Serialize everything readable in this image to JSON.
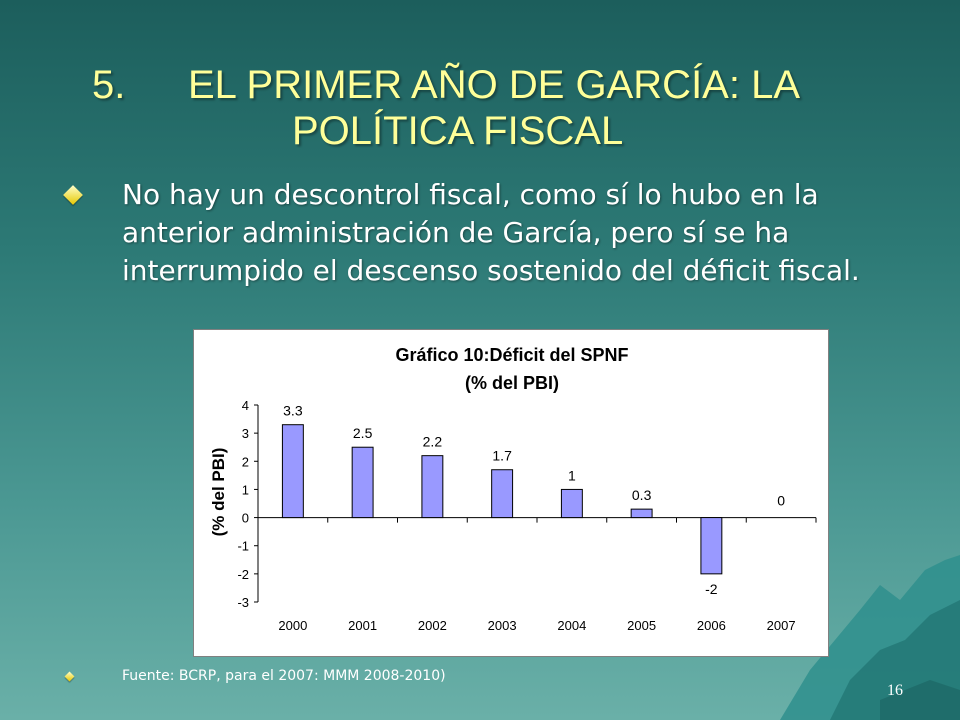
{
  "slide": {
    "title_number": "5.",
    "title_line1": "EL PRIMER AÑO DE GARCÍA: LA",
    "title_line2": "POLÍTICA FISCAL",
    "bullet": "No hay un descontrol fiscal, como sí lo hubo en la anterior administración de García, pero sí se ha interrumpido el descenso sostenido del déficit fiscal.",
    "source": "Fuente: BCRP, para el 2007: MMM 2008-2010)",
    "page_number": "16"
  },
  "colors": {
    "title": "#ffff99",
    "bar_fill": "#9999ff",
    "bar_stroke": "#000000",
    "bullet_icon": "#e6c800"
  },
  "chart_data": {
    "type": "bar",
    "title": "Gráfico 10:Déficit del SPNF",
    "subtitle": "(% del PBI)",
    "ylabel": "(% del PBI)",
    "categories": [
      "2000",
      "2001",
      "2002",
      "2003",
      "2004",
      "2005",
      "2006",
      "2007"
    ],
    "values": [
      3.3,
      2.5,
      2.2,
      1.7,
      1,
      0.3,
      -2,
      0
    ],
    "data_labels": [
      "3.3",
      "2.5",
      "2.2",
      "1.7",
      "1",
      "0.3",
      "-2",
      "0"
    ],
    "ylim": [
      -3,
      4
    ],
    "yticks": [
      4,
      3,
      2,
      1,
      0,
      -1,
      -2,
      -3
    ],
    "grid": false,
    "legend": "none"
  }
}
